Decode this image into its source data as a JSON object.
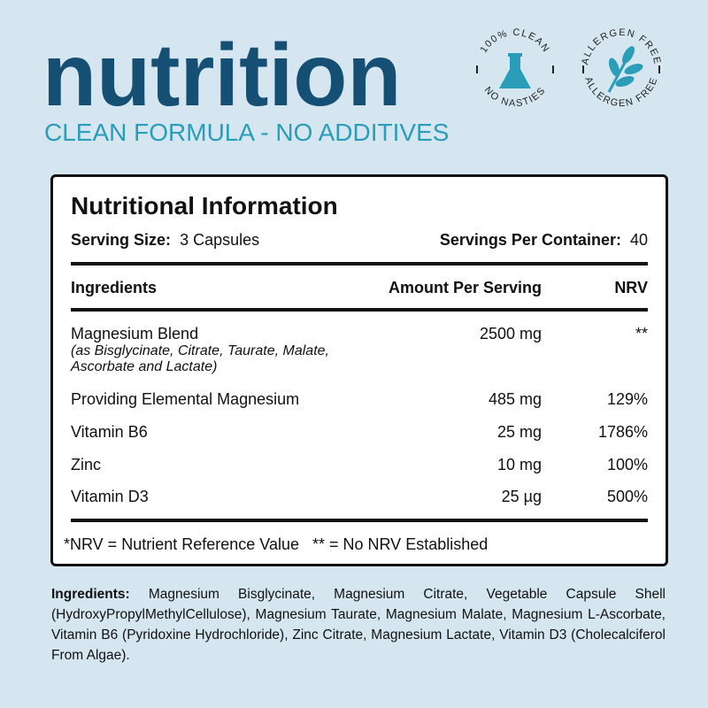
{
  "header": {
    "title": "nutrition",
    "subtitle": "CLEAN FORMULA - NO ADDITIVES"
  },
  "badges": [
    {
      "top": "100% CLEAN",
      "bottom": "NO NASTIES",
      "icon": "flask-icon"
    },
    {
      "top": "ALLERGEN FREE",
      "bottom": "ALLERGEN FREE",
      "icon": "leaf-icon"
    }
  ],
  "colors": {
    "background": "#d5e6f1",
    "title": "#164f74",
    "accent": "#2a9db8"
  },
  "panel": {
    "title": "Nutritional Information",
    "serving_size_label": "Serving Size:",
    "serving_size": "3 Capsules",
    "servings_label": "Servings Per Container:",
    "servings": "40",
    "columns": [
      "Ingredients",
      "Amount Per Serving",
      "NRV"
    ],
    "rows": [
      {
        "name": "Magnesium Blend",
        "note": "(as Bisglycinate, Citrate, Taurate, Malate, Ascorbate and Lactate)",
        "amount": "2500 mg",
        "nrv": "**"
      },
      {
        "name": "Providing Elemental Magnesium",
        "amount": "485 mg",
        "nrv": "129%"
      },
      {
        "name": "Vitamin B6",
        "amount": "25 mg",
        "nrv": "1786%"
      },
      {
        "name": "Zinc",
        "amount": "10 mg",
        "nrv": "100%"
      },
      {
        "name": "Vitamin D3",
        "amount": "25 µg",
        "nrv": "500%"
      }
    ],
    "footnote": "*NRV = Nutrient Reference Value   ** = No NRV Established"
  },
  "ingredients": {
    "label": "Ingredients:",
    "text": " Magnesium Bisglycinate, Magnesium Citrate, Vegetable Capsule Shell (HydroxyPropylMethylCellulose), Magnesium Taurate, Magnesium Malate, Magnesium L-Ascorbate, Vitamin B6 (Pyridoxine Hydrochloride), Zinc Citrate, Magnesium Lactate, Vitamin D3 (Cholecalciferol From Algae)."
  }
}
